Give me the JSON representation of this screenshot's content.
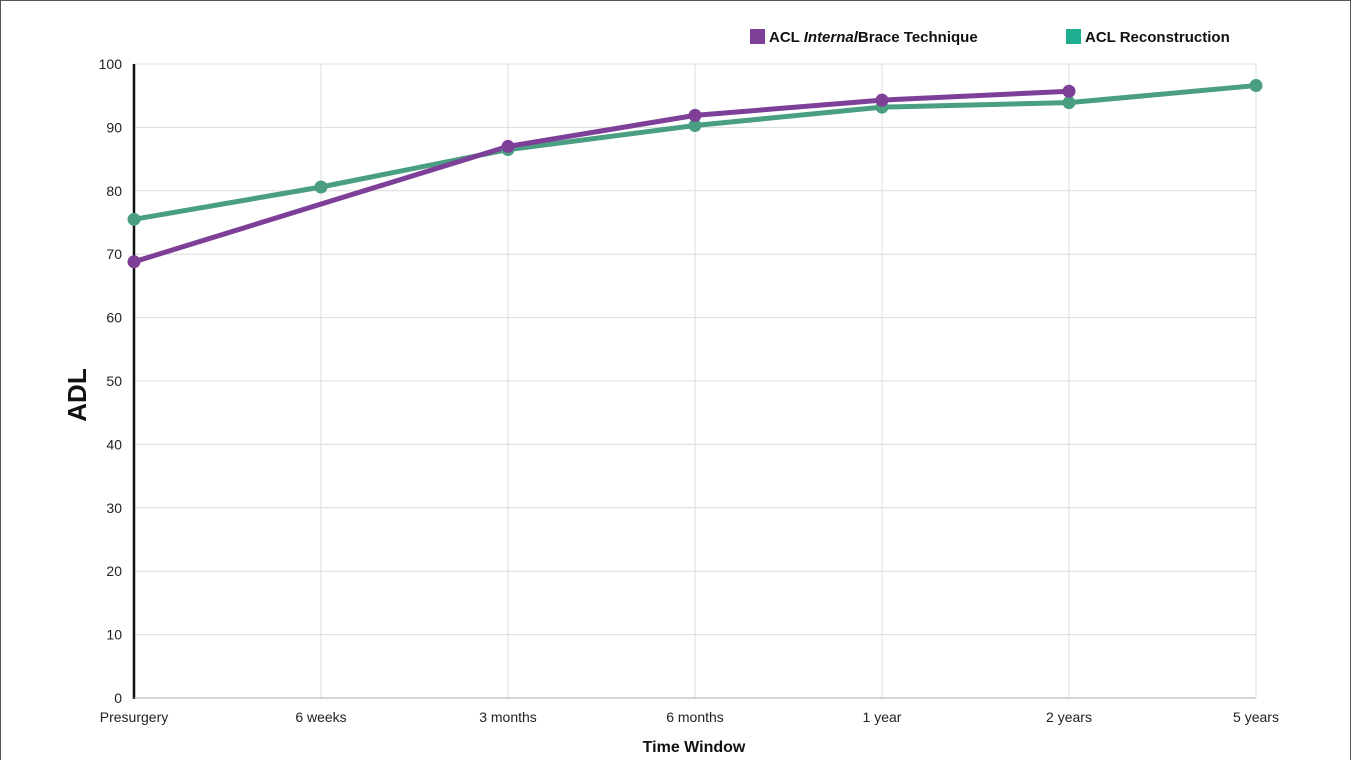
{
  "chart_data": {
    "type": "line",
    "categories": [
      "Presurgery",
      "6 weeks",
      "3 months",
      "6 months",
      "1 year",
      "2 years",
      "5 years"
    ],
    "series": [
      {
        "name": "ACL InternalBrace Technique",
        "name_parts": [
          "ACL ",
          "Internal",
          "Brace Technique"
        ],
        "color": "#7e3f98",
        "values": [
          68.8,
          null,
          87.0,
          91.9,
          94.3,
          95.7,
          null
        ]
      },
      {
        "name": "ACL Reconstruction",
        "color": "#4a9e82",
        "legend_color": "#1fae8f",
        "values": [
          75.5,
          80.6,
          86.5,
          90.3,
          93.2,
          93.9,
          96.6
        ]
      }
    ],
    "xlabel": "Time Window",
    "ylabel": "ADL",
    "ylim": [
      0,
      100
    ],
    "yticks": [
      0,
      10,
      20,
      30,
      40,
      50,
      60,
      70,
      80,
      90,
      100
    ],
    "grid": true,
    "legend_position": "top-right"
  }
}
